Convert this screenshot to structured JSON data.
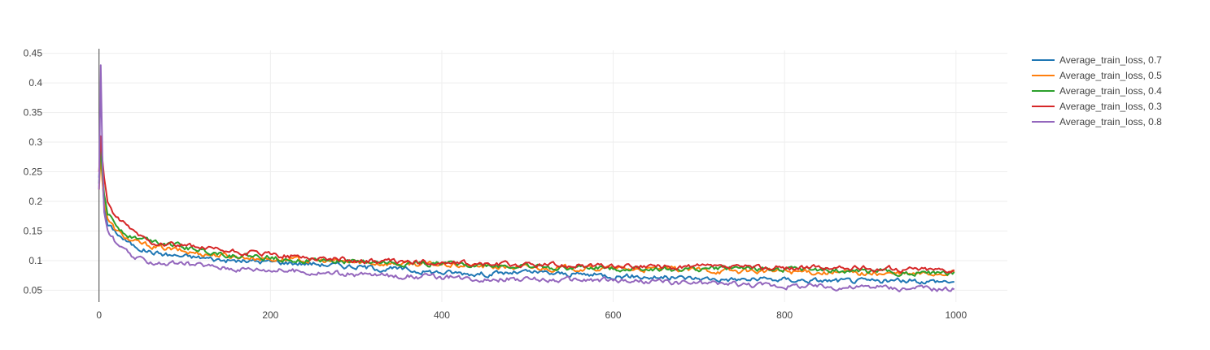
{
  "chart_data": {
    "type": "line",
    "title": "",
    "xlabel": "",
    "ylabel": "",
    "xlim": [
      -70,
      1060
    ],
    "ylim": [
      0.03,
      0.455
    ],
    "x_ticks": [
      0,
      200,
      400,
      600,
      800,
      1000
    ],
    "y_ticks": [
      0.05,
      0.1,
      0.15,
      0.2,
      0.25,
      0.3,
      0.35,
      0.4,
      0.45
    ],
    "x_tick_labels": [
      "0",
      "200",
      "400",
      "600",
      "800",
      "1000"
    ],
    "y_tick_labels": [
      "0.05",
      "0.1",
      "0.15",
      "0.2",
      "0.25",
      "0.3",
      "0.35",
      "0.4",
      "0.45"
    ],
    "grid": true,
    "legend_position": "right",
    "series": [
      {
        "name": "Average_train_loss, 0.7",
        "color": "#1f77b4",
        "x": [
          0,
          2,
          5,
          10,
          20,
          30,
          40,
          50,
          60,
          80,
          100,
          120,
          150,
          200,
          250,
          300,
          350,
          400,
          450,
          500,
          550,
          600,
          650,
          700,
          750,
          800,
          850,
          900,
          950,
          999
        ],
        "y": [
          0.24,
          0.31,
          0.2,
          0.16,
          0.148,
          0.135,
          0.125,
          0.12,
          0.115,
          0.11,
          0.107,
          0.105,
          0.1,
          0.098,
          0.095,
          0.09,
          0.085,
          0.08,
          0.078,
          0.08,
          0.077,
          0.075,
          0.072,
          0.07,
          0.068,
          0.068,
          0.066,
          0.065,
          0.066,
          0.065
        ]
      },
      {
        "name": "Average_train_loss, 0.5",
        "color": "#ff7f0e",
        "x": [
          0,
          2,
          5,
          10,
          20,
          30,
          40,
          50,
          60,
          80,
          100,
          120,
          150,
          200,
          250,
          300,
          350,
          400,
          450,
          500,
          550,
          600,
          650,
          700,
          750,
          800,
          850,
          900,
          950,
          999
        ],
        "y": [
          0.22,
          0.28,
          0.21,
          0.17,
          0.15,
          0.14,
          0.132,
          0.128,
          0.125,
          0.12,
          0.115,
          0.112,
          0.108,
          0.103,
          0.1,
          0.097,
          0.095,
          0.093,
          0.09,
          0.088,
          0.087,
          0.086,
          0.085,
          0.084,
          0.082,
          0.082,
          0.08,
          0.078,
          0.077,
          0.08
        ]
      },
      {
        "name": "Average_train_loss, 0.4",
        "color": "#2ca02c",
        "x": [
          0,
          2,
          5,
          10,
          20,
          30,
          40,
          50,
          60,
          80,
          100,
          120,
          150,
          200,
          250,
          300,
          350,
          400,
          450,
          500,
          550,
          600,
          650,
          700,
          750,
          800,
          850,
          900,
          950,
          999
        ],
        "y": [
          0.23,
          0.3,
          0.22,
          0.18,
          0.16,
          0.148,
          0.14,
          0.137,
          0.135,
          0.13,
          0.122,
          0.118,
          0.11,
          0.105,
          0.1,
          0.098,
          0.095,
          0.095,
          0.092,
          0.09,
          0.088,
          0.087,
          0.086,
          0.085,
          0.088,
          0.085,
          0.083,
          0.082,
          0.08,
          0.078
        ]
      },
      {
        "name": "Average_train_loss, 0.3",
        "color": "#d62728",
        "x": [
          0,
          2,
          5,
          10,
          20,
          30,
          40,
          50,
          60,
          80,
          100,
          120,
          150,
          200,
          250,
          300,
          350,
          400,
          450,
          500,
          550,
          600,
          650,
          700,
          750,
          800,
          850,
          900,
          950,
          999
        ],
        "y": [
          0.25,
          0.31,
          0.25,
          0.2,
          0.17,
          0.16,
          0.15,
          0.14,
          0.132,
          0.128,
          0.125,
          0.12,
          0.115,
          0.11,
          0.105,
          0.1,
          0.098,
          0.096,
          0.094,
          0.093,
          0.092,
          0.09,
          0.09,
          0.089,
          0.088,
          0.088,
          0.087,
          0.087,
          0.086,
          0.085
        ]
      },
      {
        "name": "Average_train_loss, 0.8",
        "color": "#9467bd",
        "x": [
          0,
          2,
          5,
          10,
          20,
          30,
          40,
          50,
          60,
          80,
          100,
          120,
          150,
          200,
          250,
          300,
          350,
          400,
          450,
          500,
          550,
          600,
          650,
          700,
          750,
          800,
          850,
          900,
          950,
          999
        ],
        "y": [
          0.22,
          0.43,
          0.19,
          0.15,
          0.13,
          0.115,
          0.105,
          0.1,
          0.098,
          0.095,
          0.094,
          0.092,
          0.088,
          0.085,
          0.08,
          0.077,
          0.074,
          0.072,
          0.07,
          0.068,
          0.067,
          0.066,
          0.064,
          0.062,
          0.06,
          0.058,
          0.056,
          0.055,
          0.053,
          0.052
        ]
      }
    ]
  }
}
